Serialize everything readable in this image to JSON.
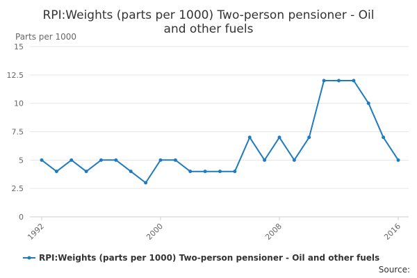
{
  "chart_data": {
    "type": "line",
    "title_lines": [
      "RPI:Weights (parts per 1000) Two-person pensioner - Oil",
      "and other fuels"
    ],
    "ylabel": "Parts per 1000",
    "xlabel": "",
    "xlim": [
      1992,
      2016
    ],
    "ylim": [
      0,
      15
    ],
    "yticks": [
      0,
      2.5,
      5,
      7.5,
      10,
      12.5,
      15
    ],
    "ytick_labels": [
      "0",
      "2.5",
      "5",
      "7.5",
      "10",
      "12.5",
      "15"
    ],
    "xticks": [
      1992,
      2000,
      2008,
      2016
    ],
    "xtick_labels": [
      "1992",
      "2000",
      "2008",
      "2016"
    ],
    "grid": "horizontal",
    "legend_position": "bottom",
    "series": [
      {
        "name": "RPI:Weights (parts per 1000) Two-person pensioner - Oil and other fuels",
        "color": "#1f7bbf",
        "x": [
          1992,
          1993,
          1994,
          1995,
          1996,
          1997,
          1998,
          1999,
          2000,
          2001,
          2002,
          2003,
          2004,
          2005,
          2006,
          2007,
          2008,
          2009,
          2010,
          2011,
          2012,
          2013,
          2014,
          2015,
          2016
        ],
        "y": [
          5,
          4,
          5,
          4,
          5,
          5,
          4,
          3,
          5,
          5,
          4,
          4,
          4,
          4,
          7,
          5,
          7,
          5,
          7,
          12,
          12,
          12,
          10,
          7,
          5
        ]
      }
    ],
    "source": "Source:"
  }
}
